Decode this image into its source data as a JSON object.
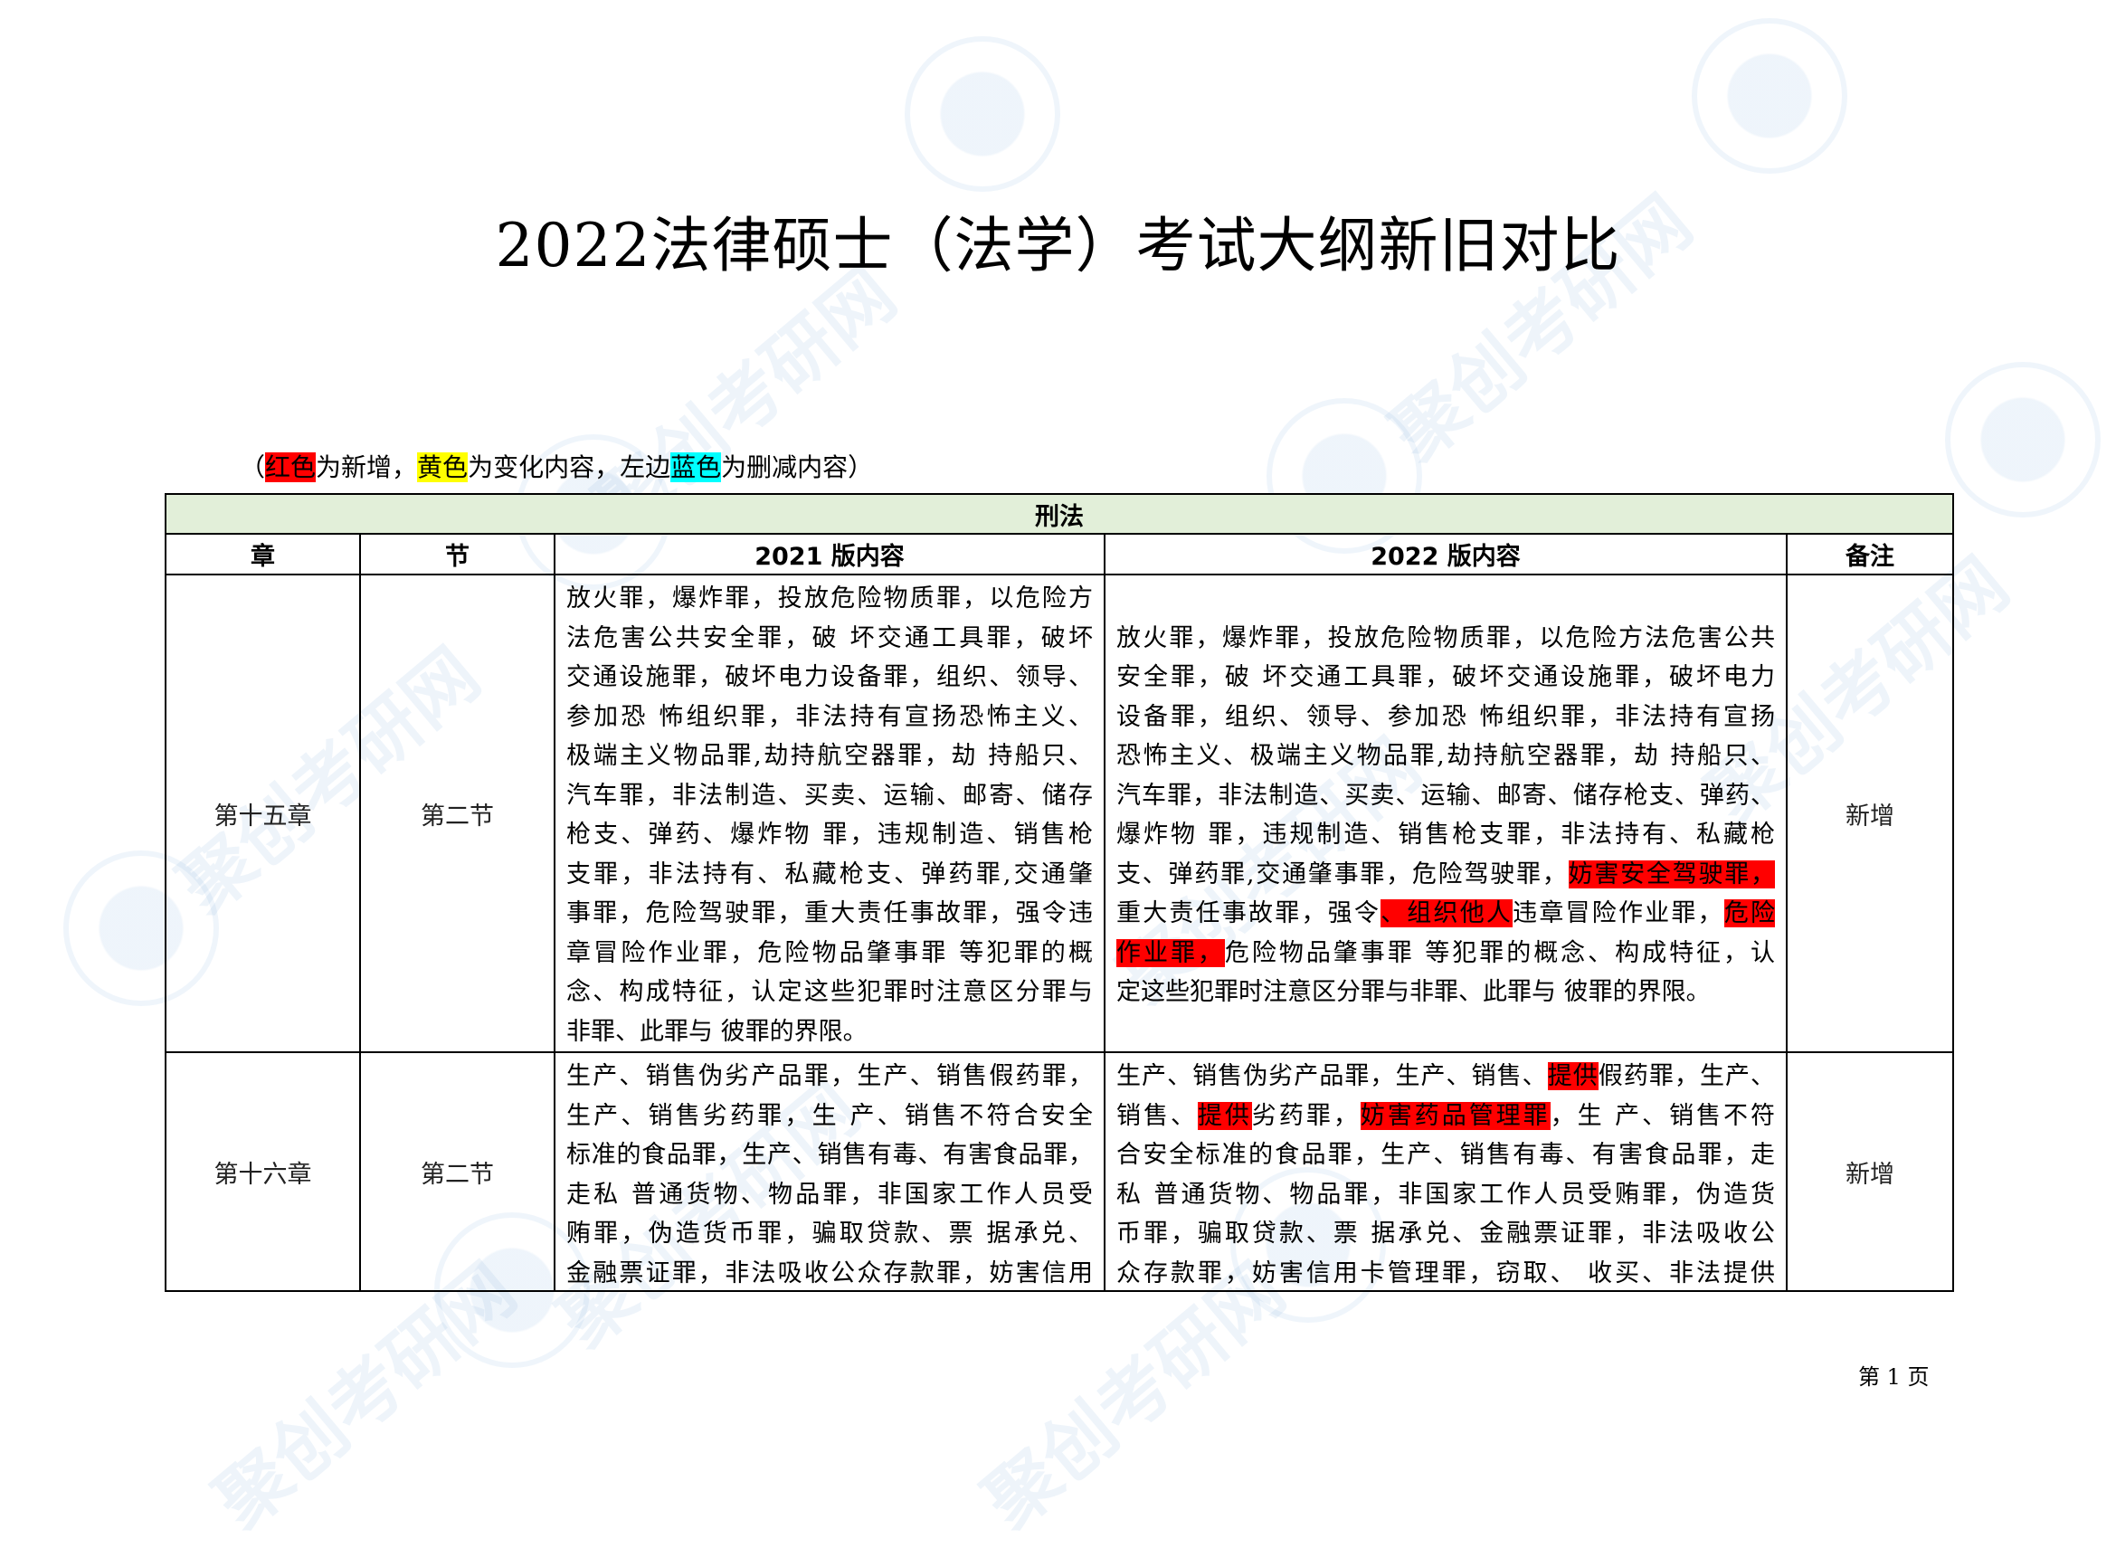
{
  "title": "2022法律硕士（法学）考试大纲新旧对比",
  "legend": [
    {
      "text": "（",
      "hl": ""
    },
    {
      "text": "红色",
      "hl": "red"
    },
    {
      "text": "为新增，",
      "hl": ""
    },
    {
      "text": "黄色",
      "hl": "yellow"
    },
    {
      "text": "为变化内容，左边",
      "hl": ""
    },
    {
      "text": "蓝色",
      "hl": "cyan"
    },
    {
      "text": "为删减内容）",
      "hl": ""
    }
  ],
  "colors": {
    "red": "#ff0000",
    "yellow": "#ffff00",
    "cyan": "#00ffff",
    "header_fill": "#e2efd9"
  },
  "table": {
    "section": "刑法",
    "headers": [
      "章",
      "节",
      "2021 版内容",
      "2022 版内容",
      "备注"
    ],
    "rows": [
      {
        "chapter": "第十五章",
        "section": "第二节",
        "note": "新增",
        "old": [
          [
            {
              "text": "放火罪，爆炸罪，投放危险物质罪，以危险方"
            }
          ],
          [
            {
              "text": "法危害公共安全罪，破  坏交通工具罪，破坏"
            }
          ],
          [
            {
              "text": "交通设施罪，破坏电力设备罪，组织、领导、"
            }
          ],
          [
            {
              "text": "参加恐  怖组织罪，非法持有宣扬恐怖主义、"
            }
          ],
          [
            {
              "text": "极端主义物品罪,劫持航空器罪，劫  持船只、"
            }
          ],
          [
            {
              "text": "汽车罪，非法制造、买卖、运输、邮寄、储存"
            }
          ],
          [
            {
              "text": "枪支、弹药、爆炸物  罪，违规制造、销售枪"
            }
          ],
          [
            {
              "text": "支罪，非法持有、私藏枪支、弹药罪,交通肇"
            }
          ],
          [
            {
              "text": "事罪，危险驾驶罪，重大责任事故罪，强令违"
            }
          ],
          [
            {
              "text": "章冒险作业罪，危险物品肇事罪  等犯罪的概"
            }
          ],
          [
            {
              "text": "念、构成特征，认定这些犯罪时注意区分罪与"
            }
          ],
          [
            {
              "text": "非罪、此罪与  彼罪的界限。"
            }
          ]
        ],
        "new": [
          [
            {
              "text": "放火罪，爆炸罪，投放危险物质罪，以危险方法危害公共"
            }
          ],
          [
            {
              "text": "安全罪，破  坏交通工具罪，破坏交通设施罪，破坏电力"
            }
          ],
          [
            {
              "text": "设备罪，组织、领导、参加恐  怖组织罪，非法持有宣扬"
            }
          ],
          [
            {
              "text": "恐怖主义、极端主义物品罪,劫持航空器罪，劫  持船只、"
            }
          ],
          [
            {
              "text": "汽车罪，非法制造、买卖、运输、邮寄、储存枪支、弹药、"
            }
          ],
          [
            {
              "text": "爆炸物  罪，违规制造、销售枪支罪，非法持有、私藏枪"
            }
          ],
          [
            {
              "text": "支、弹药罪,交通肇事罪，危险驾驶罪，"
            },
            {
              "text": "妨害安全驾驶罪，",
              "hl": "red"
            }
          ],
          [
            {
              "text": "重大责任事故罪，强令"
            },
            {
              "text": "、组织他人",
              "hl": "red"
            },
            {
              "text": "违章冒险作业罪，"
            },
            {
              "text": "危险",
              "hl": "red"
            }
          ],
          [
            {
              "text": "作业罪，",
              "hl": "red"
            },
            {
              "text": "危险物品肇事罪  等犯罪的概念、构成特征，认"
            }
          ],
          [
            {
              "text": "定这些犯罪时注意区分罪与非罪、此罪与  彼罪的界限。"
            }
          ]
        ]
      },
      {
        "chapter": "第十六章",
        "section": "第二节",
        "note": "新增",
        "old": [
          [
            {
              "text": "生产、销售伪劣产品罪，生产、销售假药罪，"
            }
          ],
          [
            {
              "text": "生产、销售劣药罪，生  产、销售不符合安全"
            }
          ],
          [
            {
              "text": "标准的食品罪，生产、销售有毒、有害食品罪，"
            }
          ],
          [
            {
              "text": "走私  普通货物、物品罪，非国家工作人员受"
            }
          ],
          [
            {
              "text": "贿罪，伪造货币罪，骗取贷款、票  据承兑、"
            }
          ],
          [
            {
              "text": "金融票证罪，非法吸收公众存款罪，妨害信用"
            }
          ]
        ],
        "new": [
          [
            {
              "text": "生产、销售伪劣产品罪，生产、销售、"
            },
            {
              "text": "提供",
              "hl": "red"
            },
            {
              "text": "假药罪，生产、"
            }
          ],
          [
            {
              "text": "销售、"
            },
            {
              "text": "提供",
              "hl": "red"
            },
            {
              "text": "劣药罪，"
            },
            {
              "text": "妨害药品管理罪",
              "hl": "red"
            },
            {
              "text": "，生  产、销售不符"
            }
          ],
          [
            {
              "text": "合安全标准的食品罪，生产、销售有毒、有害食品罪，走"
            }
          ],
          [
            {
              "text": "私  普通货物、物品罪，非国家工作人员受贿罪，伪造货"
            }
          ],
          [
            {
              "text": "币罪，骗取贷款、票  据承兑、金融票证罪，非法吸收公"
            }
          ],
          [
            {
              "text": "众存款罪，妨害信用卡管理罪，窃取、  收买、非法提供"
            }
          ]
        ]
      }
    ]
  },
  "footer": {
    "page": "第  1  页"
  },
  "watermark": "聚创考研网"
}
